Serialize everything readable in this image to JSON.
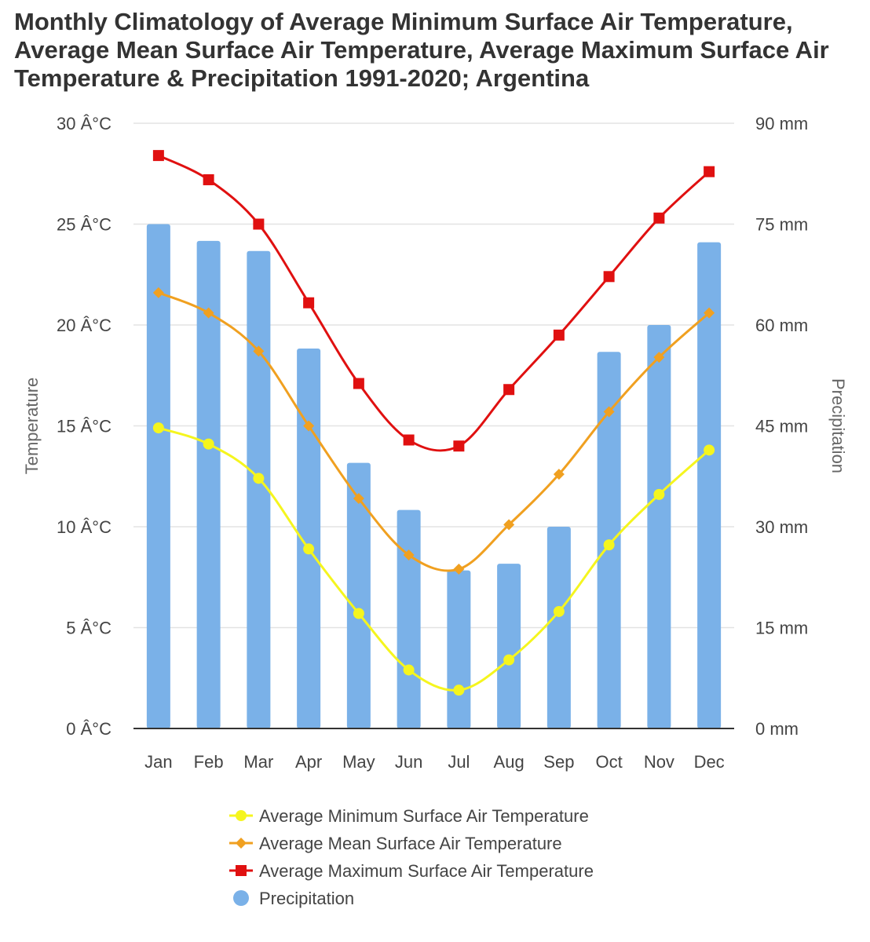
{
  "chart_data": {
    "type": "bar+line",
    "title_lines": [
      "Monthly Climatology of Average Minimum Surface Air Temperature,",
      "Average Mean Surface Air Temperature, Average Maximum Surface Air",
      "Temperature & Precipitation 1991-2020; Argentina"
    ],
    "categories": [
      "Jan",
      "Feb",
      "Mar",
      "Apr",
      "May",
      "Jun",
      "Jul",
      "Aug",
      "Sep",
      "Oct",
      "Nov",
      "Dec"
    ],
    "y_left": {
      "label": "Temperature",
      "range": [
        0,
        30
      ],
      "ticks": [
        0,
        5,
        10,
        15,
        20,
        25,
        30
      ],
      "tick_labels": [
        "0 Â°C",
        "5 Â°C",
        "10 Â°C",
        "15 Â°C",
        "20 Â°C",
        "25 Â°C",
        "30 Â°C"
      ]
    },
    "y_right": {
      "label": "Precipitation",
      "range": [
        0,
        90
      ],
      "ticks": [
        0,
        15,
        30,
        45,
        60,
        75,
        90
      ],
      "tick_labels": [
        "0 mm",
        "15 mm",
        "30 mm",
        "45 mm",
        "60 mm",
        "75 mm",
        "90 mm"
      ]
    },
    "series": [
      {
        "name": "Average Minimum Surface Air Temperature",
        "kind": "line",
        "axis": "left",
        "marker": "circle",
        "color": "#f5f51e",
        "values": [
          14.9,
          14.1,
          12.4,
          8.9,
          5.7,
          2.9,
          1.9,
          3.4,
          5.8,
          9.1,
          11.6,
          13.8
        ]
      },
      {
        "name": "Average Mean Surface Air Temperature",
        "kind": "line",
        "axis": "left",
        "marker": "diamond",
        "color": "#f0a020",
        "values": [
          21.6,
          20.6,
          18.7,
          15.0,
          11.4,
          8.6,
          7.9,
          10.1,
          12.6,
          15.7,
          18.4,
          20.6
        ]
      },
      {
        "name": "Average Maximum Surface Air Temperature",
        "kind": "line",
        "axis": "left",
        "marker": "square",
        "color": "#e01010",
        "values": [
          28.4,
          27.2,
          25.0,
          21.1,
          17.1,
          14.3,
          14.0,
          16.8,
          19.5,
          22.4,
          25.3,
          27.6
        ]
      },
      {
        "name": "Precipitation",
        "kind": "bar",
        "axis": "right",
        "marker": "circle",
        "color": "#7ab1e8",
        "values": [
          75,
          72.5,
          71,
          56.5,
          39.5,
          32.5,
          23.5,
          24.5,
          30,
          56,
          60,
          72.3
        ]
      }
    ],
    "grid": true,
    "legend_position": "bottom"
  }
}
